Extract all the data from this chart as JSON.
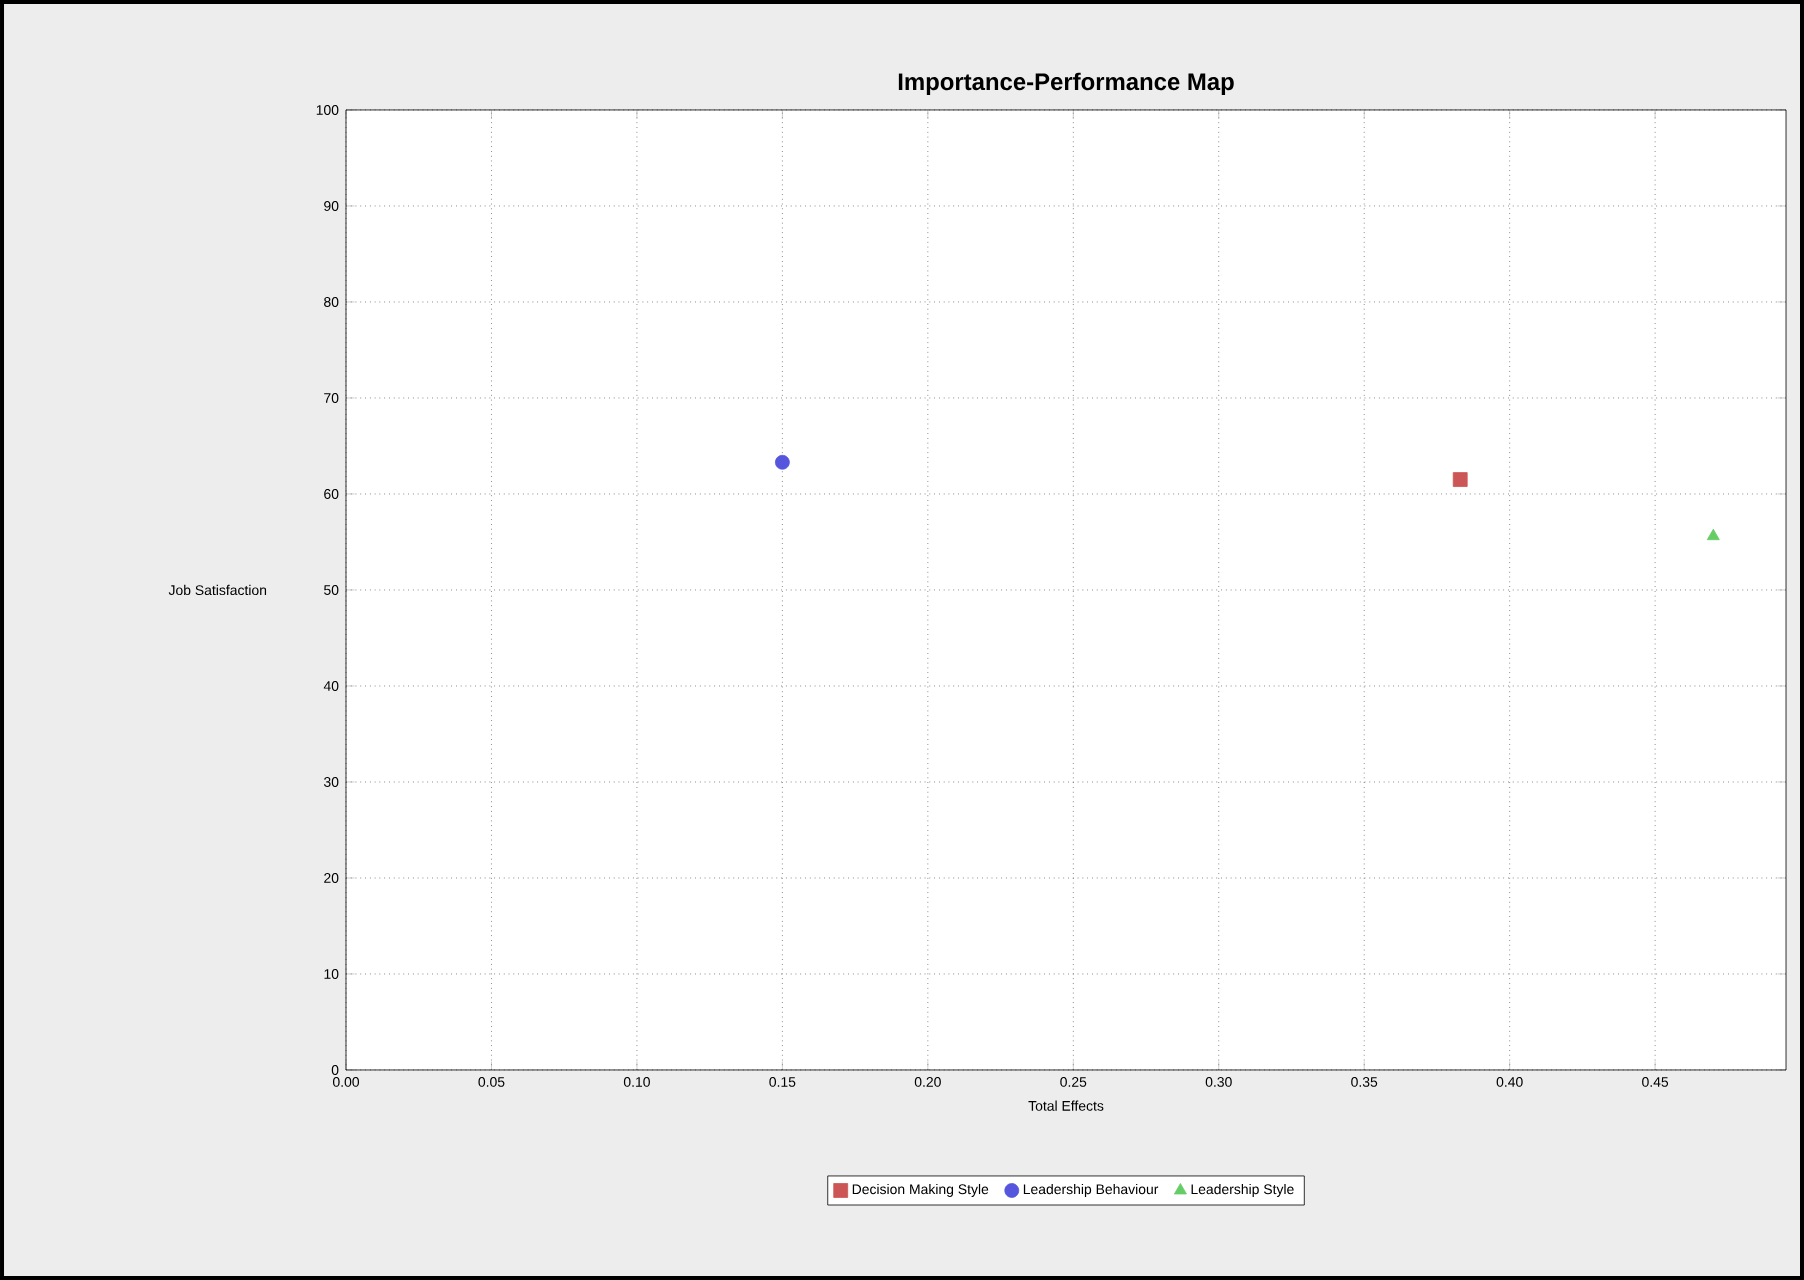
{
  "chart_data": {
    "type": "scatter",
    "title": "Importance-Performance Map",
    "xlabel": "Total Effects",
    "ylabel": "Job Satisfaction",
    "series": [
      {
        "name": "Decision Making Style",
        "color": "#cc5555",
        "marker": "square",
        "x": [
          0.383
        ],
        "values": [
          61.5
        ]
      },
      {
        "name": "Leadership Behaviour",
        "color": "#5555dd",
        "marker": "circle",
        "x": [
          0.15
        ],
        "values": [
          63.3
        ]
      },
      {
        "name": "Leadership Style",
        "color": "#66cc66",
        "marker": "triangle",
        "x": [
          0.47
        ],
        "values": [
          55.6
        ]
      }
    ],
    "xlim": [
      0,
      0.495
    ],
    "ylim": [
      0,
      100
    ],
    "xticks": [
      {
        "value": 0,
        "label": "0.00"
      },
      {
        "value": 0.05,
        "label": "0.05"
      },
      {
        "value": 0.1,
        "label": "0.10"
      },
      {
        "value": 0.15,
        "label": "0.15"
      },
      {
        "value": 0.2,
        "label": "0.20"
      },
      {
        "value": 0.25,
        "label": "0.25"
      },
      {
        "value": 0.3,
        "label": "0.30"
      },
      {
        "value": 0.35,
        "label": "0.35"
      },
      {
        "value": 0.4,
        "label": "0.40"
      },
      {
        "value": 0.45,
        "label": "0.45"
      }
    ],
    "yticks": [
      0,
      10,
      20,
      30,
      40,
      50,
      60,
      70,
      80,
      90,
      100
    ],
    "grid": true,
    "legend": "bottom"
  }
}
